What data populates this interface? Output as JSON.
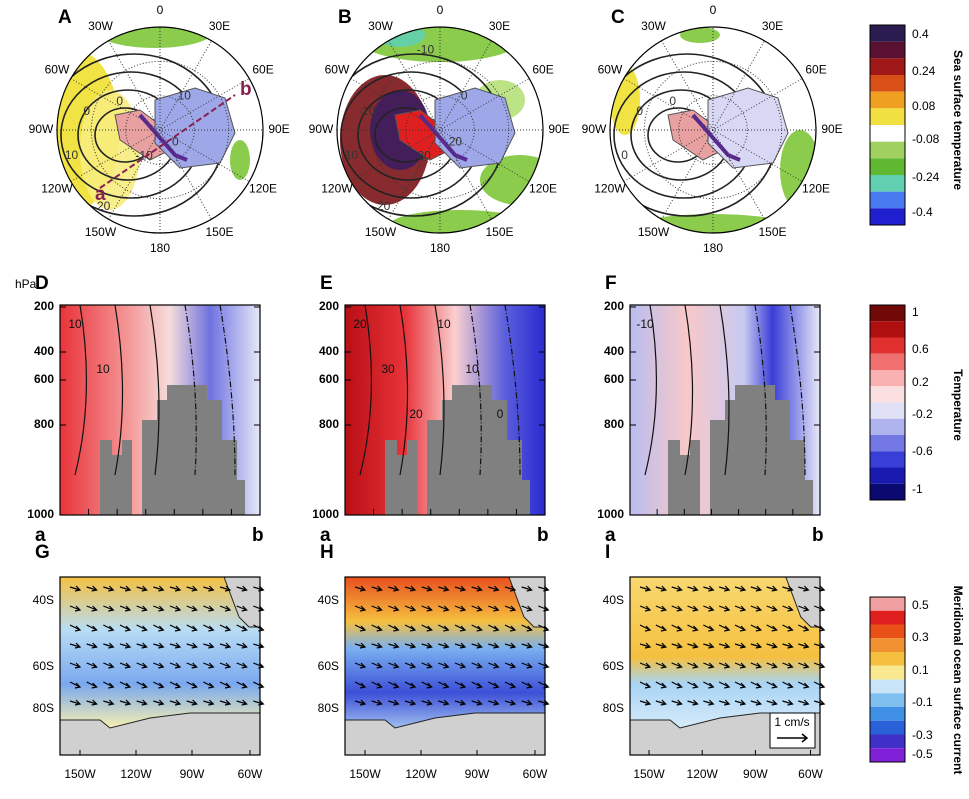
{
  "maps": {
    "panels": [
      {
        "label": "A",
        "contour_labels": [
          "0",
          "0",
          "10",
          "20",
          "-10",
          "0",
          "10"
        ]
      },
      {
        "label": "B",
        "contour_labels": [
          "0",
          "-10",
          "10",
          "20",
          "30",
          "20",
          "0",
          "-10"
        ]
      },
      {
        "label": "C",
        "contour_labels": [
          "0",
          "0",
          "0"
        ]
      }
    ],
    "lon_labels": [
      "30W",
      "0",
      "30E",
      "60E",
      "90E",
      "120E",
      "150E",
      "180",
      "150W",
      "120W",
      "90W",
      "60W"
    ],
    "section_ends": [
      "a",
      "b"
    ]
  },
  "sections": {
    "unit": "hPa",
    "levels": [
      "200",
      "400",
      "600",
      "800",
      "1000"
    ],
    "ends": [
      "a",
      "b"
    ],
    "panels": [
      {
        "label": "D",
        "contour_labels": [
          "10",
          "10"
        ]
      },
      {
        "label": "E",
        "contour_labels": [
          "20",
          "30",
          "20",
          "10",
          "10",
          "0"
        ]
      },
      {
        "label": "F",
        "contour_labels": [
          "-10"
        ]
      }
    ]
  },
  "currents": {
    "panels": [
      {
        "label": "G"
      },
      {
        "label": "H"
      },
      {
        "label": "I"
      }
    ],
    "lat_labels": [
      "40S",
      "60S",
      "80S"
    ],
    "lon_labels": [
      "150W",
      "120W",
      "90W",
      "60W"
    ],
    "scale_label": "1 cm/s"
  },
  "colorbars": [
    {
      "title": "Sea surface temperature",
      "ticks": [
        "0.4",
        "0.24",
        "0.08",
        "-0.08",
        "-0.24",
        "-0.4"
      ]
    },
    {
      "title": "Temperature",
      "ticks": [
        "1",
        "0.6",
        "0.2",
        "-0.2",
        "-0.6",
        "-1"
      ]
    },
    {
      "title": "Meridional ocean surface current",
      "ticks": [
        "0.5",
        "0.3",
        "0.1",
        "-0.1",
        "-0.3",
        "-0.5"
      ]
    }
  ]
}
